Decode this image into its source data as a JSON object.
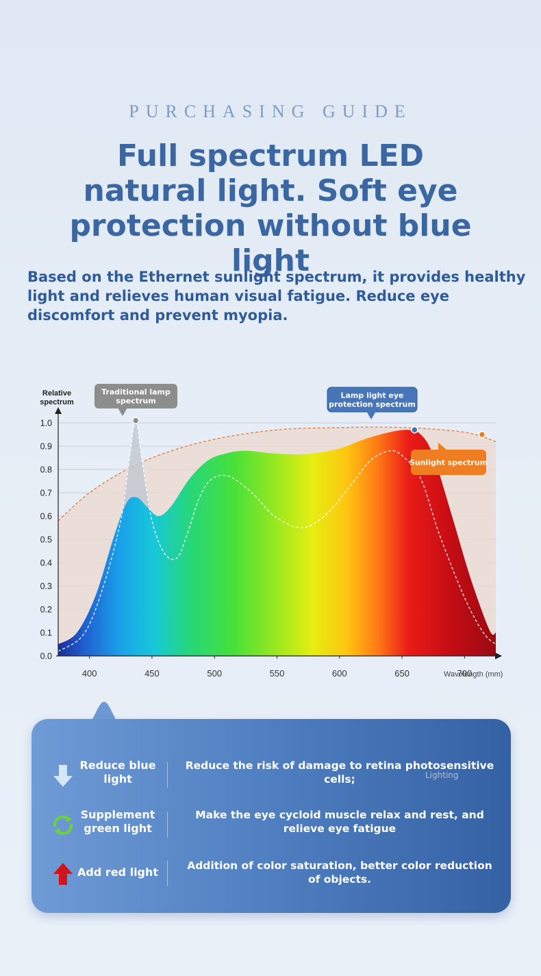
{
  "header": {
    "overline": "PURCHASING GUIDE",
    "headline": "Full spectrum LED natural light. Soft eye protection without blue light",
    "subtitle": "Based on the Ethernet sunlight spectrum, it provides healthy light and relieves human visual fatigue. Reduce eye discomfort and prevent myopia."
  },
  "chart_data": {
    "type": "area",
    "ylabel": "Relative spectrum",
    "xlabel": "Wavelength (mm)",
    "xlim": [
      375,
      725
    ],
    "ylim": [
      0,
      1.0
    ],
    "x_ticks": [
      400,
      450,
      500,
      550,
      600,
      650,
      700
    ],
    "y_ticks": [
      "0.0",
      "0.1",
      "0.2",
      "0.3",
      "0.4",
      "0.5",
      "0.6",
      "0.7",
      "0.8",
      "0.9",
      "1.0"
    ],
    "grid": true,
    "series": [
      {
        "name": "Lamp light eye protection spectrum",
        "style": "rainbow-filled area",
        "x": [
          375,
          390,
          405,
          420,
          430,
          438,
          446,
          455,
          465,
          480,
          495,
          510,
          525,
          545,
          565,
          580,
          600,
          620,
          640,
          655,
          665,
          675,
          690,
          705,
          720,
          725
        ],
        "y": [
          0.05,
          0.1,
          0.26,
          0.52,
          0.66,
          0.68,
          0.64,
          0.6,
          0.64,
          0.76,
          0.84,
          0.87,
          0.88,
          0.87,
          0.865,
          0.87,
          0.89,
          0.93,
          0.96,
          0.97,
          0.95,
          0.86,
          0.6,
          0.33,
          0.11,
          0.1
        ]
      },
      {
        "name": "Traditional lamp spectrum",
        "style": "dashed white line",
        "x": [
          375,
          395,
          410,
          425,
          432,
          437,
          442,
          450,
          460,
          470,
          478,
          488,
          498,
          512,
          530,
          548,
          570,
          590,
          610,
          625,
          640,
          650,
          665,
          680,
          700,
          715,
          725
        ],
        "y": [
          0.02,
          0.09,
          0.28,
          0.58,
          0.85,
          1.01,
          0.84,
          0.58,
          0.44,
          0.42,
          0.52,
          0.68,
          0.76,
          0.77,
          0.7,
          0.6,
          0.55,
          0.61,
          0.74,
          0.84,
          0.88,
          0.86,
          0.76,
          0.52,
          0.25,
          0.1,
          0.05
        ]
      },
      {
        "name": "Sunlight spectrum",
        "style": "dashed orange line with light fill",
        "x": [
          375,
          400,
          430,
          460,
          500,
          550,
          600,
          650,
          700,
          725
        ],
        "y": [
          0.58,
          0.7,
          0.8,
          0.87,
          0.93,
          0.97,
          0.98,
          0.98,
          0.96,
          0.92
        ]
      }
    ],
    "markers": [
      {
        "label": "Traditional lamp spectrum",
        "x": 437,
        "y": 1.01,
        "color": "#8d8d8d"
      },
      {
        "label": "Lamp light eye protection spectrum",
        "x": 660,
        "y": 0.97,
        "color": "#3e6fa8"
      },
      {
        "label": "Sunlight spectrum",
        "x": 714,
        "y": 0.95,
        "color": "#ef7d22"
      }
    ]
  },
  "features": [
    {
      "name": "Reduce blue light",
      "icon": "down-arrow-icon",
      "color": "#cfe2f8",
      "desc": "Reduce the risk of damage to retina photosensitive cells;"
    },
    {
      "name": "Supplement green light",
      "icon": "refresh-cycle-icon",
      "color": "#6fd13b",
      "desc": "Make the eye cycloid muscle relax and rest, and relieve eye fatigue"
    },
    {
      "name": "Add red light",
      "icon": "up-arrow-icon",
      "color": "#d0141c",
      "desc": "Addition of color saturation, better color reduction of objects."
    }
  ],
  "watermark": "Lighting",
  "colors": {
    "title": "#3a66a2",
    "overline": "#7f9cc2",
    "panel_start": "#6f9bd6",
    "panel_end": "#3461a3"
  }
}
